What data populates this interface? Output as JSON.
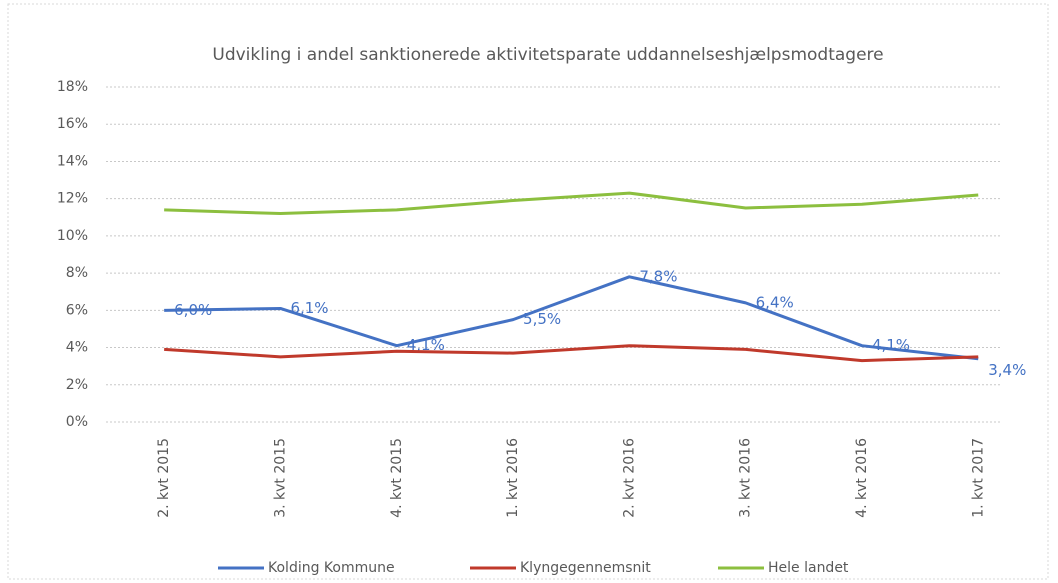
{
  "chart_data": {
    "type": "line",
    "title": "Udvikling i andel sanktionerede aktivitetsparate uddannelseshjælpsmodtagere",
    "categories": [
      "2. kvt 2015",
      "3. kvt 2015",
      "4. kvt 2015",
      "1. kvt 2016",
      "2. kvt 2016",
      "3. kvt 2016",
      "4. kvt 2016",
      "1. kvt 2017"
    ],
    "series": [
      {
        "name": "Kolding Kommune",
        "color": "#4472c4",
        "values": [
          6.0,
          6.1,
          4.1,
          5.5,
          7.8,
          6.4,
          4.1,
          3.4
        ],
        "value_labels": [
          "6,0%",
          "6,1%",
          "4,1%",
          "5,5%",
          "7,8%",
          "6,4%",
          "4,1%",
          "3,4%"
        ]
      },
      {
        "name": "Klyngegennemsnit",
        "color": "#c0392b",
        "values": [
          3.9,
          3.5,
          3.8,
          3.7,
          4.1,
          3.9,
          3.3,
          3.5
        ]
      },
      {
        "name": "Hele landet",
        "color": "#8cbf3f",
        "values": [
          11.4,
          11.2,
          11.4,
          11.9,
          12.3,
          11.5,
          11.7,
          12.2
        ]
      }
    ],
    "ylim": [
      0,
      18
    ],
    "yticks": [
      {
        "value": 0,
        "label": "0%"
      },
      {
        "value": 2,
        "label": "2%"
      },
      {
        "value": 4,
        "label": "4%"
      },
      {
        "value": 6,
        "label": "6%"
      },
      {
        "value": 8,
        "label": "8%"
      },
      {
        "value": 10,
        "label": "10%"
      },
      {
        "value": 12,
        "label": "12%"
      },
      {
        "value": 14,
        "label": "14%"
      },
      {
        "value": 16,
        "label": "16%"
      },
      {
        "value": 18,
        "label": "18%"
      }
    ],
    "grid": true,
    "legend": "bottom"
  }
}
